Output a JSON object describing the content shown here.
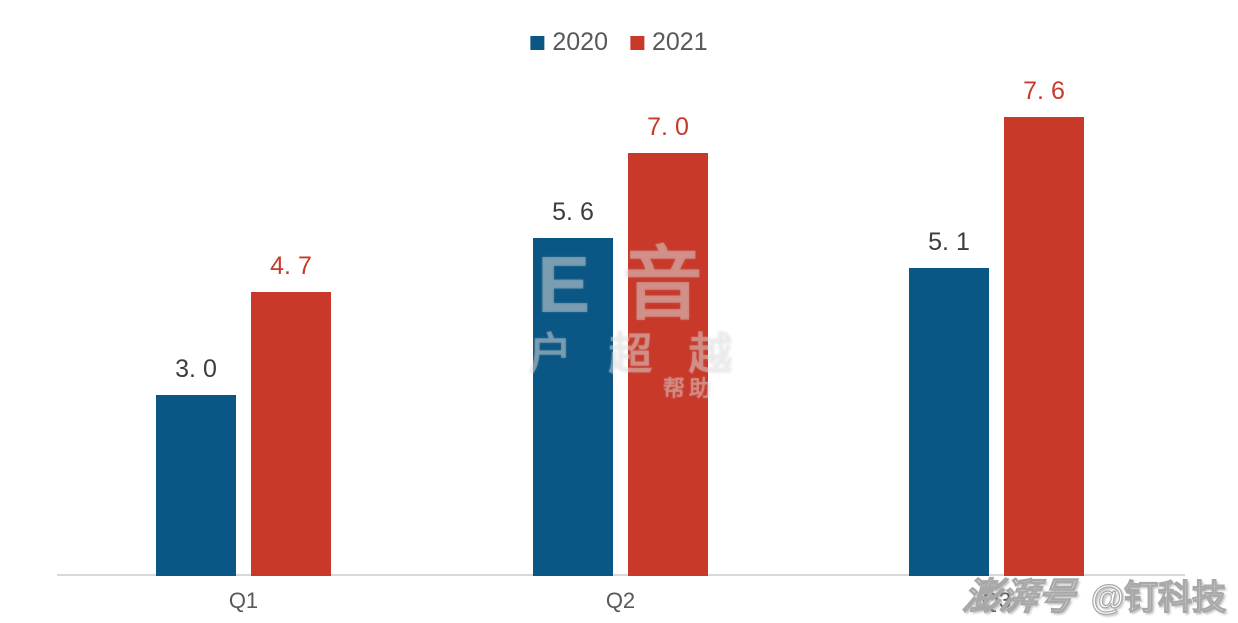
{
  "chart_data": {
    "type": "bar",
    "title": "",
    "xlabel": "",
    "ylabel": "",
    "categories": [
      "Q1",
      "Q2",
      "Q3"
    ],
    "series": [
      {
        "name": "2020",
        "color": "#0a5785",
        "values": [
          3.0,
          5.6,
          5.1
        ],
        "labels": [
          "3. 0",
          "5. 6",
          "5. 1"
        ],
        "label_color": "#3d3d3d"
      },
      {
        "name": "2021",
        "color": "#c9392a",
        "values": [
          4.7,
          7.0,
          7.6
        ],
        "labels": [
          "4. 7",
          "7. 0",
          "7. 6"
        ],
        "label_color": "#c9392a"
      }
    ],
    "ylim": [
      0,
      8
    ],
    "grid": false,
    "legend_position": "top-center",
    "axis_line_color": "#d9d9d9",
    "category_label_color": "#595959"
  },
  "watermarks": {
    "center": {
      "rows": [
        "E音",
        "户 超 越",
        "帮助"
      ]
    },
    "bottom_right": {
      "logo": "澎湃号",
      "handle": "@钉科技"
    }
  }
}
